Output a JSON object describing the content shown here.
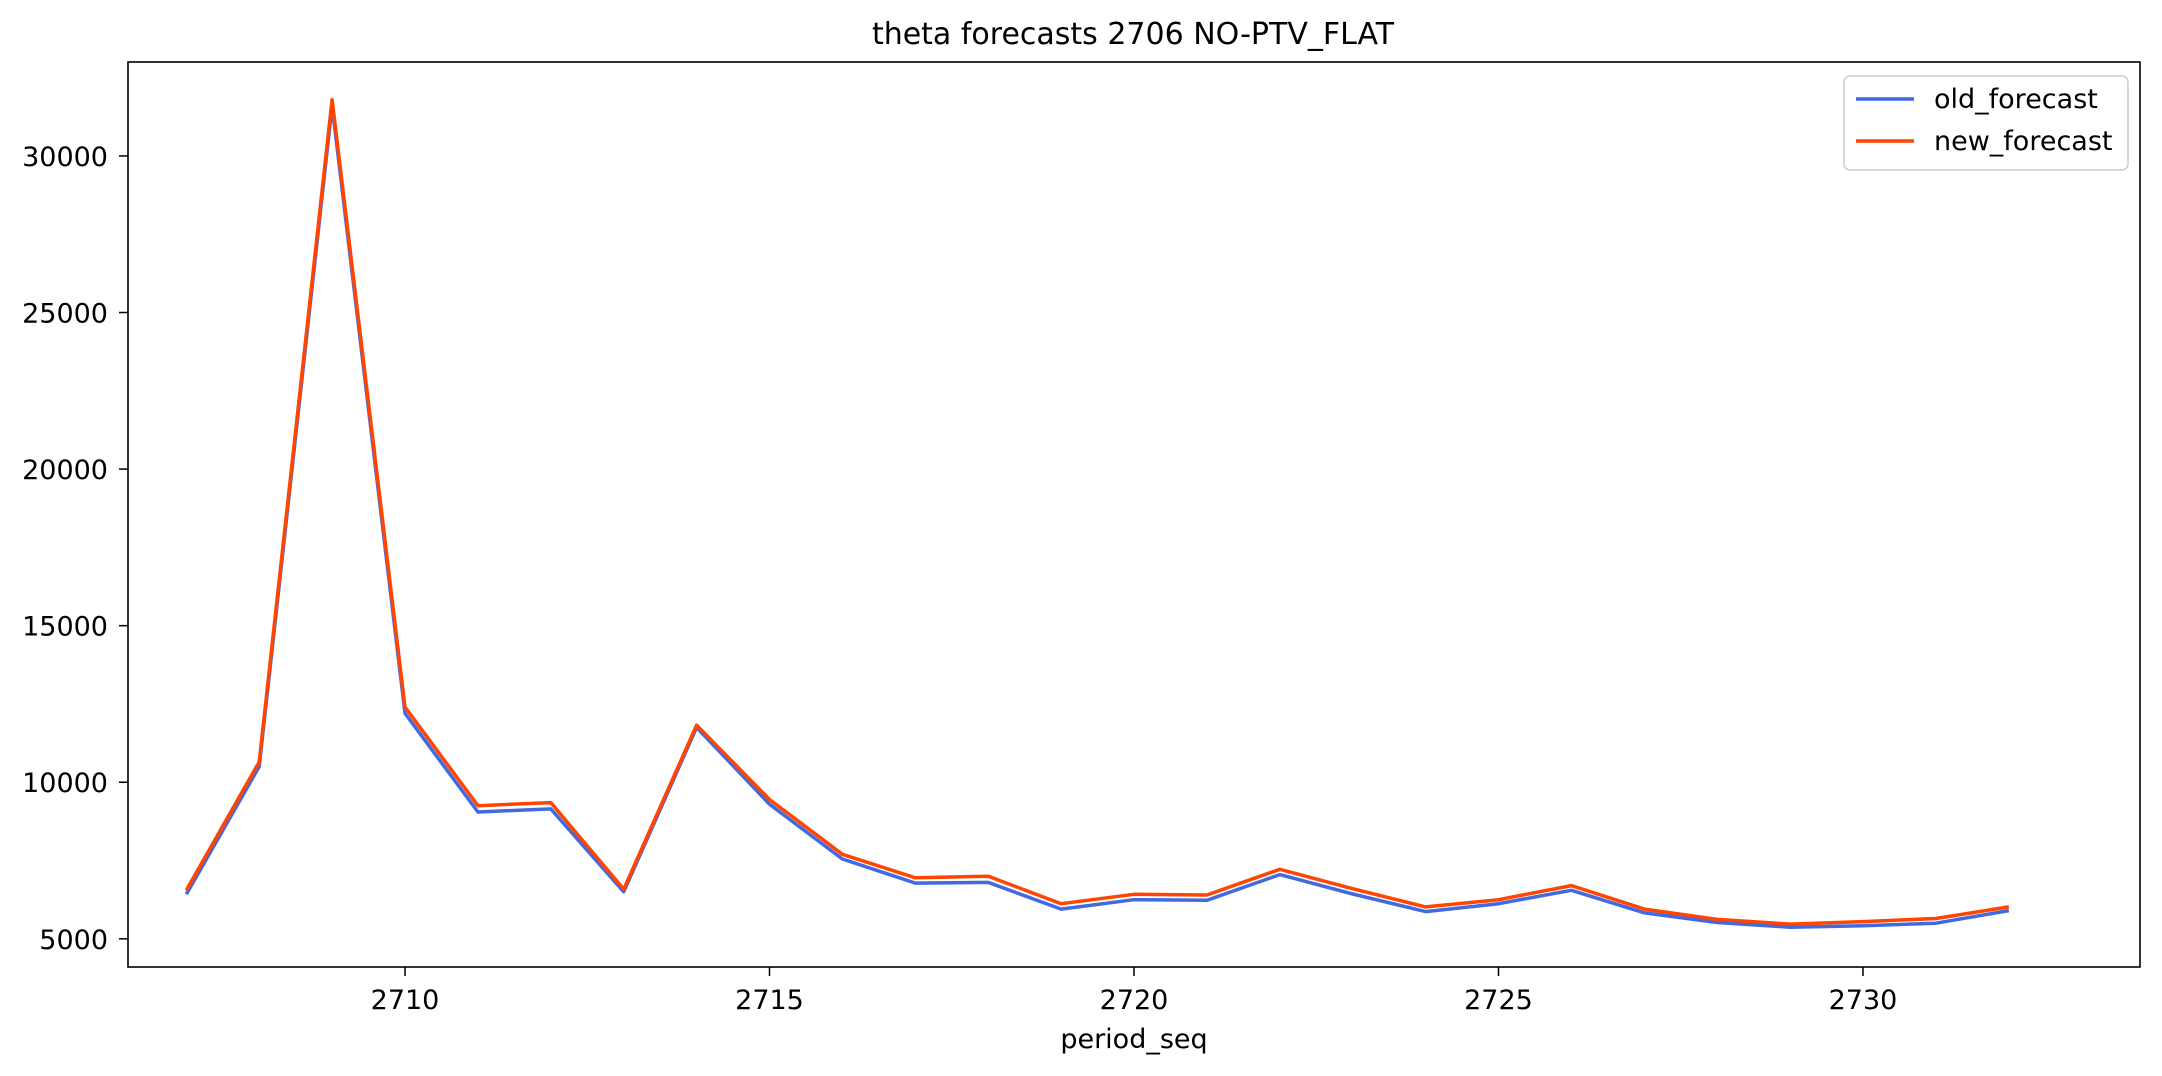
{
  "chart_data": {
    "type": "line",
    "title": "theta forecasts 2706 NO-PTV_FLAT",
    "xlabel": "period_seq",
    "ylabel": "",
    "xlim": [
      2706.2,
      2733.8
    ],
    "ylim": [
      4100,
      33000
    ],
    "xticks": [
      2710,
      2715,
      2720,
      2725,
      2730
    ],
    "yticks": [
      5000,
      10000,
      15000,
      20000,
      25000,
      30000
    ],
    "legend_position": "upper right",
    "grid": false,
    "x": [
      2707,
      2708,
      2709,
      2710,
      2711,
      2712,
      2713,
      2714,
      2715,
      2716,
      2717,
      2718,
      2719,
      2720,
      2721,
      2722,
      2723,
      2724,
      2725,
      2726,
      2727,
      2728,
      2729,
      2730,
      2731,
      2732
    ],
    "series": [
      {
        "name": "old_forecast",
        "color": "#4169e1",
        "values": [
          6420,
          10500,
          31600,
          12200,
          9050,
          9150,
          6500,
          11750,
          9300,
          7550,
          6780,
          6800,
          5950,
          6250,
          6230,
          7050,
          6430,
          5870,
          6120,
          6550,
          5830,
          5520,
          5370,
          5420,
          5500,
          5900
        ]
      },
      {
        "name": "new_forecast",
        "color": "#ff4500",
        "values": [
          6550,
          10650,
          31800,
          12400,
          9250,
          9350,
          6580,
          11820,
          9450,
          7700,
          6950,
          7000,
          6120,
          6420,
          6400,
          7220,
          6600,
          6020,
          6250,
          6700,
          5950,
          5620,
          5470,
          5550,
          5650,
          6020
        ]
      }
    ]
  }
}
